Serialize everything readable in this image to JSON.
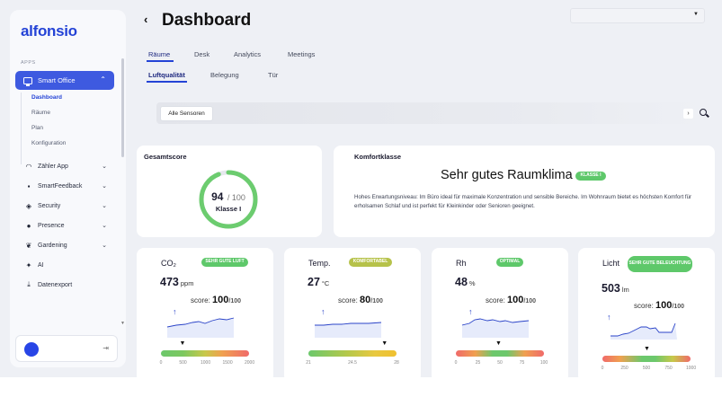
{
  "brand": {
    "logo": "alfonsio"
  },
  "sidebar": {
    "section_label": "APPS",
    "active_item": {
      "label": "Smart Office",
      "icon": "monitor-icon"
    },
    "subitems": [
      {
        "label": "Dashboard",
        "active": true
      },
      {
        "label": "Räume",
        "active": false
      },
      {
        "label": "Plan",
        "active": false
      },
      {
        "label": "Konfiguration",
        "active": false
      }
    ],
    "items": [
      {
        "label": "Zähler App",
        "icon": "wifi-icon",
        "expandable": true
      },
      {
        "label": "SmartFeedback",
        "icon": "chat-icon",
        "expandable": true
      },
      {
        "label": "Security",
        "icon": "shield-icon",
        "expandable": true
      },
      {
        "label": "Presence",
        "icon": "people-icon",
        "expandable": true
      },
      {
        "label": "Gardening",
        "icon": "leaf-icon",
        "expandable": true
      },
      {
        "label": "AI",
        "icon": "sparkle-icon",
        "expandable": false
      },
      {
        "label": "Datenexport",
        "icon": "download-icon",
        "expandable": false
      }
    ]
  },
  "header": {
    "title": "Dashboard",
    "back_icon": "chevron-left-icon",
    "select_value": ""
  },
  "tabs": [
    {
      "label": "Räume",
      "active": true
    },
    {
      "label": "Desk",
      "active": false
    },
    {
      "label": "Analytics",
      "active": false
    },
    {
      "label": "Meetings",
      "active": false
    }
  ],
  "subtabs": [
    {
      "label": "Luftqualität",
      "active": true
    },
    {
      "label": "Belegung",
      "active": false
    },
    {
      "label": "Tür",
      "active": false
    }
  ],
  "sensor_filter": {
    "chip": "Alle Sensoren"
  },
  "gesamtscore": {
    "title": "Gesamtscore",
    "score": "94",
    "of": "/ 100",
    "score_fraction": 0.94,
    "klasse": "Klasse I",
    "ring_color": "#6ccc6f"
  },
  "komfort": {
    "title": "Komfortklasse",
    "headline": "Sehr gutes Raumklima",
    "badge": "KLASSE I",
    "text": "Hohes Erwartungsniveau: Im Büro ideal für maximale Konzentration und sensible Bereiche. Im Wohnraum bietet es höchsten Komfort für erholsamen Schlaf und ist perfekt für Kleinkinder oder Senioren geeignet."
  },
  "metrics": [
    {
      "label": "CO₂",
      "value": "473",
      "unit": "ppm",
      "badge": "SEHR GUTE LUFT",
      "badge_color": "#5ec86a",
      "score": "100",
      "score_den": "/100",
      "ticks": [
        "0",
        "500",
        "1000",
        "1500",
        "2000"
      ],
      "marker_fraction": 0.24,
      "gauge": "co2"
    },
    {
      "label": "Temp.",
      "value": "27",
      "unit": "°C",
      "badge": "KOMFORTABEL",
      "badge_color": "#b6c24a",
      "score": "80",
      "score_den": "/100",
      "ticks": [
        "21",
        "24.5",
        "28"
      ],
      "marker_fraction": 0.86,
      "gauge": "temp"
    },
    {
      "label": "Rh",
      "value": "48",
      "unit": "%",
      "badge": "OPTIMAL",
      "badge_color": "#5ec86a",
      "score": "100",
      "score_den": "/100",
      "ticks": [
        "0",
        "25",
        "50",
        "75",
        "100"
      ],
      "marker_fraction": 0.48,
      "gauge": "rh"
    },
    {
      "label": "Licht",
      "value": "503",
      "unit": "lm",
      "badge": "SEHR GUTE BELEUCHTUNG",
      "badge_color": "#5ec86a",
      "score": "100",
      "score_den": "/100",
      "ticks": [
        "0",
        "250",
        "500",
        "750",
        "1000"
      ],
      "marker_fraction": 0.5,
      "gauge": "licht"
    }
  ],
  "colors": {
    "accent": "#2443d6",
    "sidebar_active": "#3e5ae0",
    "good": "#5ec86a",
    "bad": "#f06a6a"
  }
}
